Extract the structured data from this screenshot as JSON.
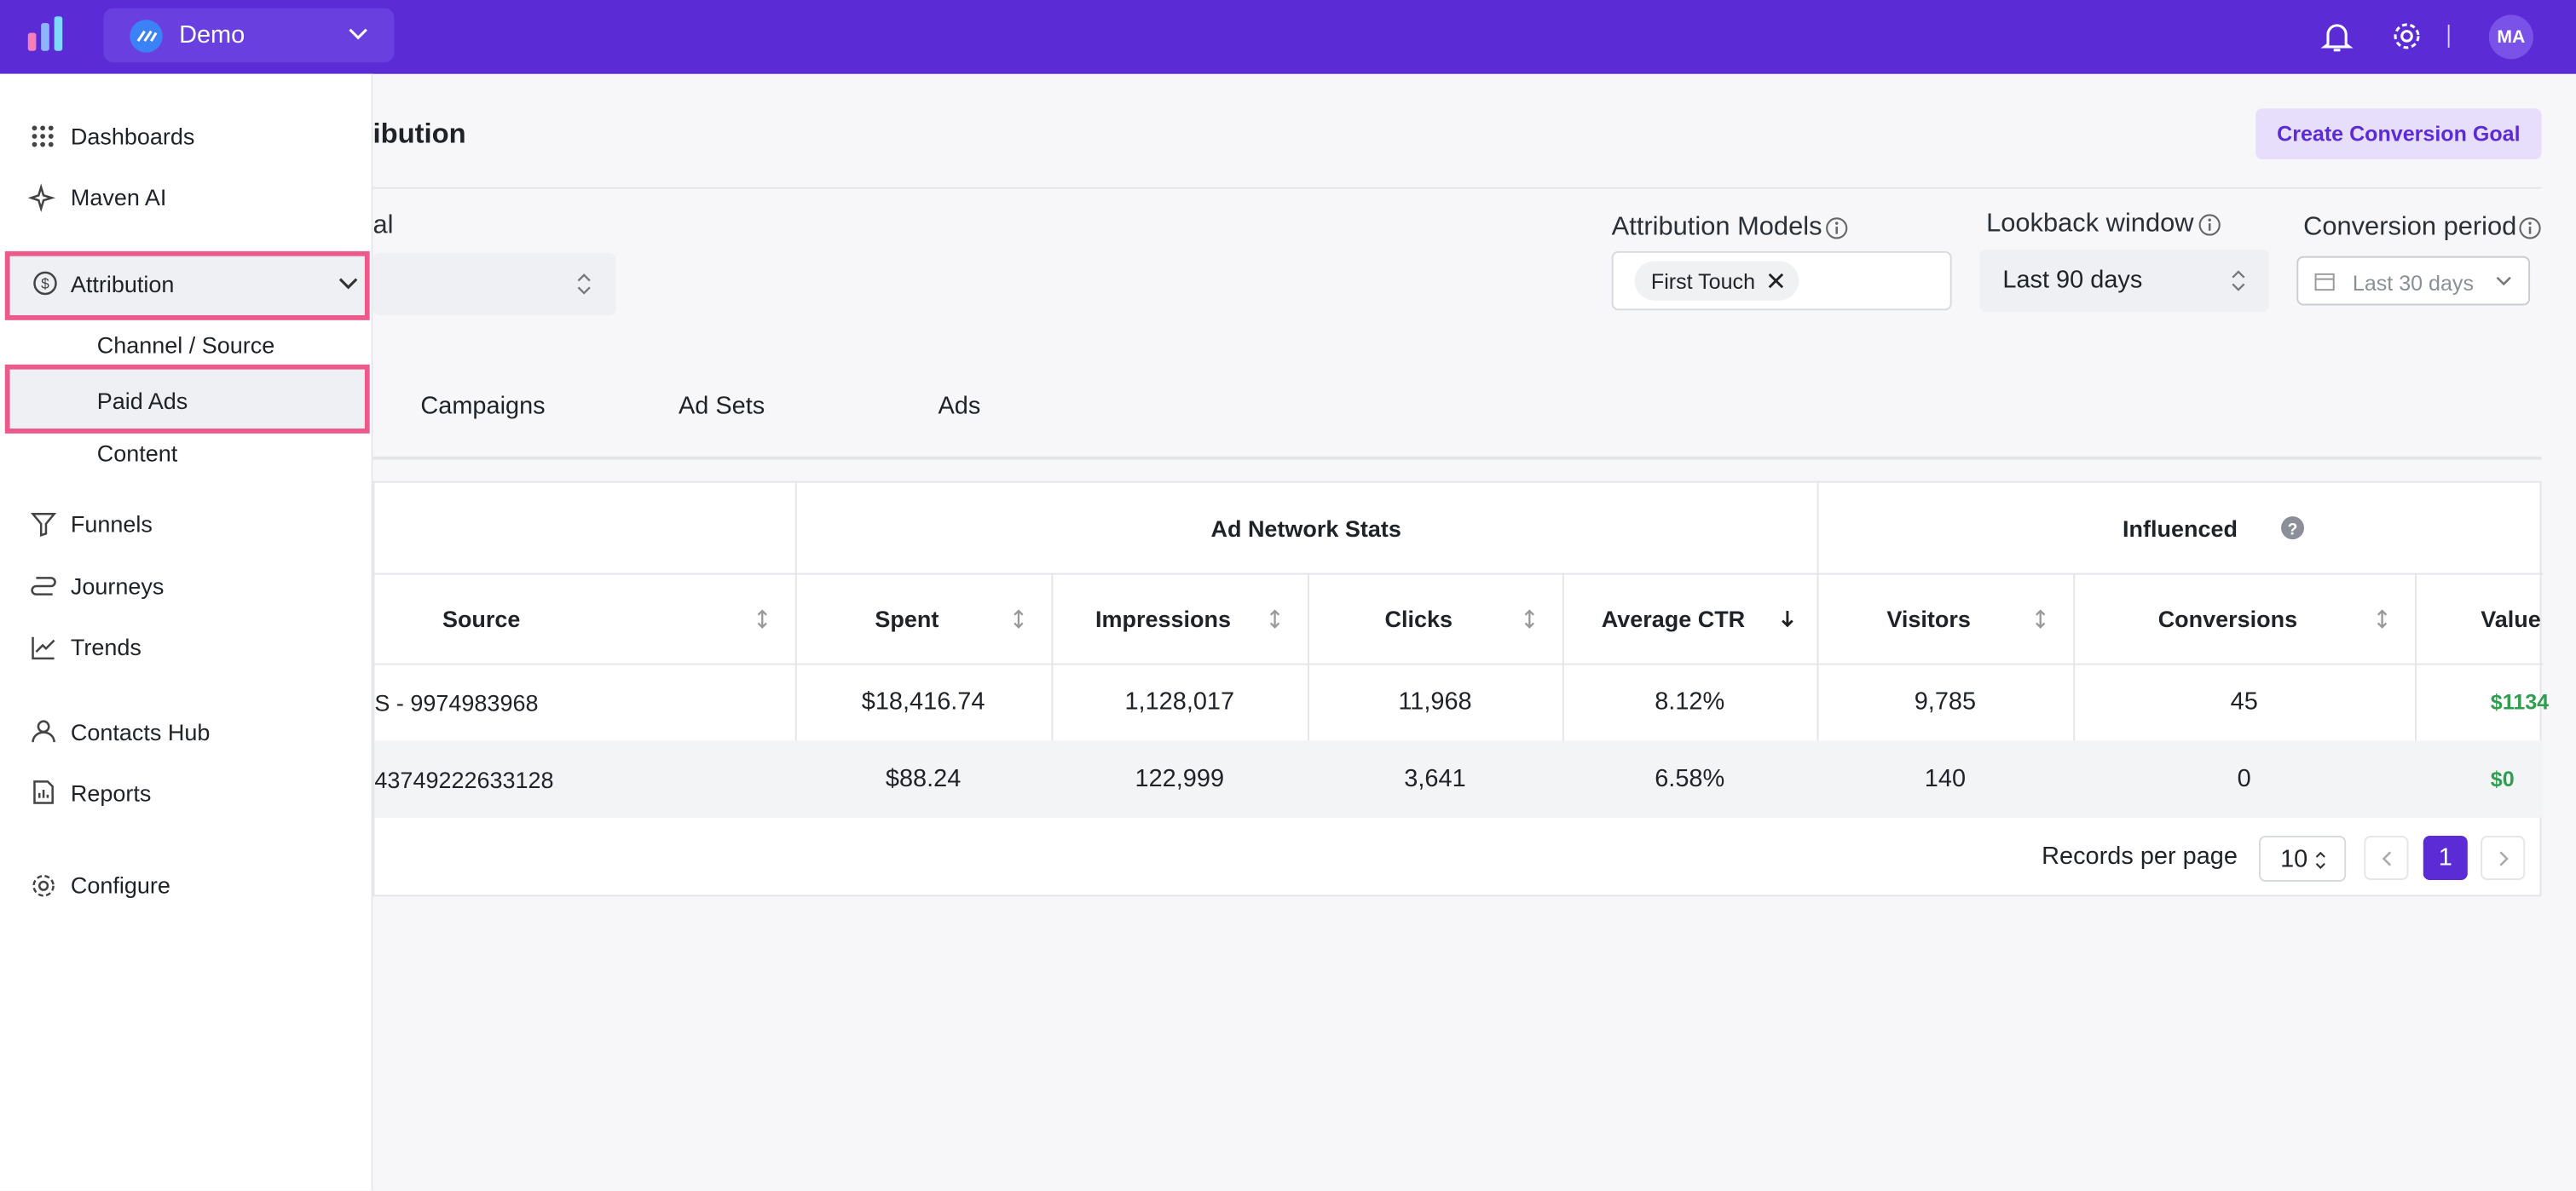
{
  "header": {
    "workspace": "Demo",
    "avatar": "MA"
  },
  "sidebar": {
    "items_top": [
      "Dashboards",
      "Maven AI"
    ],
    "attribution": "Attribution",
    "sub_items": [
      "Channel / Source",
      "Paid Ads",
      "Content"
    ],
    "items_middle": [
      "Funnels",
      "Journeys",
      "Trends"
    ],
    "items_bottom": [
      "Contacts Hub",
      "Reports"
    ],
    "configure": "Configure"
  },
  "page": {
    "title": "ibution",
    "create_button": "Create Conversion Goal",
    "goal_label": "al",
    "attribution_models_label": "Attribution Models",
    "model_chip": "First Touch",
    "lookback_label": "Lookback window",
    "lookback_value": "Last 90 days",
    "conversion_period_label": "Conversion period",
    "conversion_period_value": "Last 30 days"
  },
  "tabs": [
    "Campaigns",
    "Ad Sets",
    "Ads"
  ],
  "table": {
    "groups": [
      "Ad Network Stats",
      "Influenced"
    ],
    "columns": [
      "Source",
      "Spent",
      "Impressions",
      "Clicks",
      "Average CTR",
      "Visitors",
      "Conversions",
      "Value"
    ],
    "rows": [
      [
        "S - 9974983968",
        "$18,416.74",
        "1,128,017",
        "11,968",
        "8.12%",
        "9,785",
        "45",
        "$1134"
      ],
      [
        "43749222633128",
        "$88.24",
        "122,999",
        "3,641",
        "6.58%",
        "140",
        "0",
        "$0"
      ]
    ]
  },
  "pagination": {
    "label": "Records per page",
    "per_page": "10",
    "current_page": "1"
  }
}
